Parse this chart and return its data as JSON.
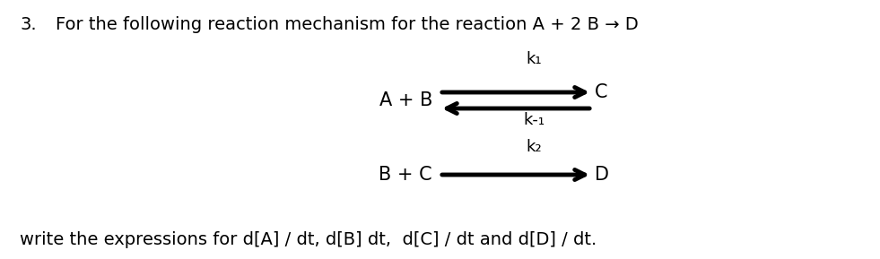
{
  "background_color": "#ffffff",
  "title_number": "3.",
  "title_text": "For the following reaction mechanism for the reaction A + 2 B → D",
  "title_fontsize": 14,
  "reaction1_left": "A + B",
  "reaction1_right": "C",
  "reaction1_label_top": "k₁",
  "reaction1_label_bottom": "k-₁",
  "reaction2_left": "B + C",
  "reaction2_right": "D",
  "reaction2_label": "k₂",
  "bottom_text": "write the expressions for d[A] / dt, d[B] dt,  d[C] / dt and d[D] / dt.",
  "chem_fontsize": 15,
  "label_fontsize": 13,
  "arrow_lw": 3.5,
  "arrow_mutation_scale": 20
}
